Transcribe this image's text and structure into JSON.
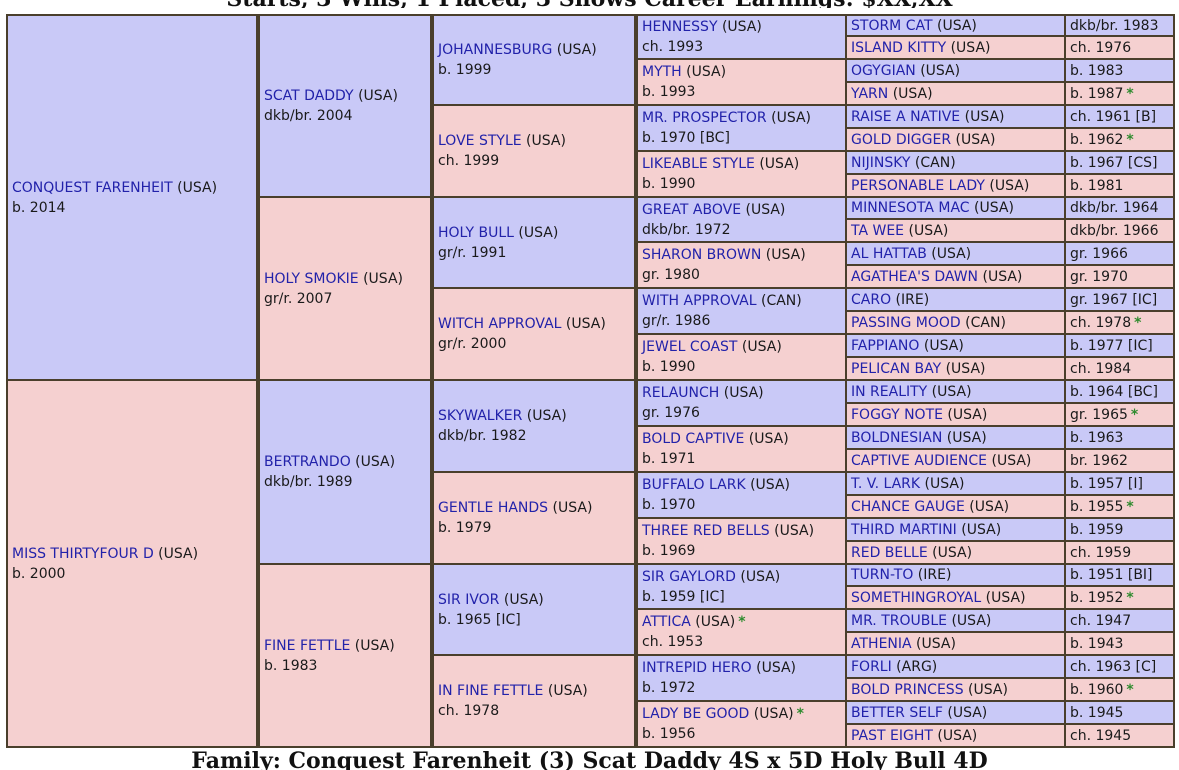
{
  "header_partial": "Starts, 3 Wins, 1 Placed, 3 Shows Career Earnings: $XX,XX",
  "footer_partial": "Family: Conquest Farenheit (3) Scat Daddy 4S x 5D Holy Bull 4D",
  "pedigree": [
    {
      "name": "CONQUEST FARENHEIT",
      "origin": "(USA)",
      "info": "b. 2014"
    },
    {
      "name": "MISS THIRTYFOUR D",
      "origin": "(USA)",
      "info": "b. 2000"
    },
    {
      "name": "SCAT DADDY",
      "origin": "(USA)",
      "info": "dkb/br. 2004"
    },
    {
      "name": "HOLY SMOKIE",
      "origin": "(USA)",
      "info": "gr/r. 2007"
    },
    {
      "name": "BERTRANDO",
      "origin": "(USA)",
      "info": "dkb/br. 1989"
    },
    {
      "name": "FINE FETTLE",
      "origin": "(USA)",
      "info": "b. 1983"
    },
    {
      "name": "JOHANNESBURG",
      "origin": "(USA)",
      "info": "b. 1999"
    },
    {
      "name": "LOVE STYLE",
      "origin": "(USA)",
      "info": "ch. 1999"
    },
    {
      "name": "HOLY BULL",
      "origin": "(USA)",
      "info": "gr/r. 1991"
    },
    {
      "name": "WITCH APPROVAL",
      "origin": "(USA)",
      "info": "gr/r. 2000"
    },
    {
      "name": "SKYWALKER",
      "origin": "(USA)",
      "info": "dkb/br. 1982"
    },
    {
      "name": "GENTLE HANDS",
      "origin": "(USA)",
      "info": "b. 1979"
    },
    {
      "name": "SIR IVOR",
      "origin": "(USA)",
      "info": "b. 1965 [IC]"
    },
    {
      "name": "IN FINE FETTLE",
      "origin": "(USA)",
      "info": "ch. 1978"
    },
    {
      "name": "HENNESSY",
      "origin": "(USA)",
      "info": "ch. 1993"
    },
    {
      "name": "MYTH",
      "origin": "(USA)",
      "info": "b. 1993"
    },
    {
      "name": "MR. PROSPECTOR",
      "origin": "(USA)",
      "info": "b. 1970 [BC]"
    },
    {
      "name": "LIKEABLE STYLE",
      "origin": "(USA)",
      "info": "b. 1990"
    },
    {
      "name": "GREAT ABOVE",
      "origin": "(USA)",
      "info": "dkb/br. 1972"
    },
    {
      "name": "SHARON BROWN",
      "origin": "(USA)",
      "info": "gr. 1980"
    },
    {
      "name": "WITH APPROVAL",
      "origin": "(CAN)",
      "info": "gr/r. 1986"
    },
    {
      "name": "JEWEL COAST",
      "origin": "(USA)",
      "info": "b. 1990"
    },
    {
      "name": "RELAUNCH",
      "origin": "(USA)",
      "info": "gr. 1976"
    },
    {
      "name": "BOLD CAPTIVE",
      "origin": "(USA)",
      "info": "b. 1971"
    },
    {
      "name": "BUFFALO LARK",
      "origin": "(USA)",
      "info": "b. 1970"
    },
    {
      "name": "THREE RED BELLS",
      "origin": "(USA)",
      "info": "b. 1969"
    },
    {
      "name": "SIR GAYLORD",
      "origin": "(USA)",
      "info": "b. 1959 [IC]"
    },
    {
      "name": "ATTICA",
      "origin": "(USA)",
      "info": "ch. 1953",
      "star": "*"
    },
    {
      "name": "INTREPID HERO",
      "origin": "(USA)",
      "info": "b. 1972"
    },
    {
      "name": "LADY BE GOOD",
      "origin": "(USA)",
      "info": "b. 1956",
      "star": "*"
    },
    {
      "name": "STORM CAT",
      "origin": "(USA)",
      "info": "dkb/br. 1983"
    },
    {
      "name": "ISLAND KITTY",
      "origin": "(USA)",
      "info": "ch. 1976"
    },
    {
      "name": "OGYGIAN",
      "origin": "(USA)",
      "info": "b. 1983"
    },
    {
      "name": "YARN",
      "origin": "(USA)",
      "info": "b. 1987",
      "star": "*"
    },
    {
      "name": "RAISE A NATIVE",
      "origin": "(USA)",
      "info": "ch. 1961 [B]"
    },
    {
      "name": "GOLD DIGGER",
      "origin": "(USA)",
      "info": "b. 1962",
      "star": "*"
    },
    {
      "name": "NIJINSKY",
      "origin": "(CAN)",
      "info": "b. 1967 [CS]"
    },
    {
      "name": "PERSONABLE LADY",
      "origin": "(USA)",
      "info": "b. 1981"
    },
    {
      "name": "MINNESOTA MAC",
      "origin": "(USA)",
      "info": "dkb/br. 1964"
    },
    {
      "name": "TA WEE",
      "origin": "(USA)",
      "info": "dkb/br. 1966"
    },
    {
      "name": "AL HATTAB",
      "origin": "(USA)",
      "info": "gr. 1966"
    },
    {
      "name": "AGATHEA'S DAWN",
      "origin": "(USA)",
      "info": "gr. 1970"
    },
    {
      "name": "CARO",
      "origin": "(IRE)",
      "info": "gr. 1967 [IC]"
    },
    {
      "name": "PASSING MOOD",
      "origin": "(CAN)",
      "info": "ch. 1978",
      "star": "*"
    },
    {
      "name": "FAPPIANO",
      "origin": "(USA)",
      "info": "b. 1977 [IC]"
    },
    {
      "name": "PELICAN BAY",
      "origin": "(USA)",
      "info": "ch. 1984"
    },
    {
      "name": "IN REALITY",
      "origin": "(USA)",
      "info": "b. 1964 [BC]"
    },
    {
      "name": "FOGGY NOTE",
      "origin": "(USA)",
      "info": "gr. 1965",
      "star": "*"
    },
    {
      "name": "BOLDNESIAN",
      "origin": "(USA)",
      "info": "b. 1963"
    },
    {
      "name": "CAPTIVE AUDIENCE",
      "origin": "(USA)",
      "info": "br. 1962"
    },
    {
      "name": "T. V. LARK",
      "origin": "(USA)",
      "info": "b. 1957 [I]"
    },
    {
      "name": "CHANCE GAUGE",
      "origin": "(USA)",
      "info": "b. 1955",
      "star": "*"
    },
    {
      "name": "THIRD MARTINI",
      "origin": "(USA)",
      "info": "b. 1959"
    },
    {
      "name": "RED BELLE",
      "origin": "(USA)",
      "info": "ch. 1959"
    },
    {
      "name": "TURN-TO",
      "origin": "(IRE)",
      "info": "b. 1951 [BI]"
    },
    {
      "name": "SOMETHINGROYAL",
      "origin": "(USA)",
      "info": "b. 1952",
      "star": "*"
    },
    {
      "name": "MR. TROUBLE",
      "origin": "(USA)",
      "info": "ch. 1947"
    },
    {
      "name": "ATHENIA",
      "origin": "(USA)",
      "info": "b. 1943"
    },
    {
      "name": "FORLI",
      "origin": "(ARG)",
      "info": "ch. 1963 [C]"
    },
    {
      "name": "BOLD PRINCESS",
      "origin": "(USA)",
      "info": "b. 1960",
      "star": "*"
    },
    {
      "name": "BETTER SELF",
      "origin": "(USA)",
      "info": "b. 1945"
    },
    {
      "name": "PAST EIGHT",
      "origin": "(USA)",
      "info": "ch. 1945"
    }
  ]
}
